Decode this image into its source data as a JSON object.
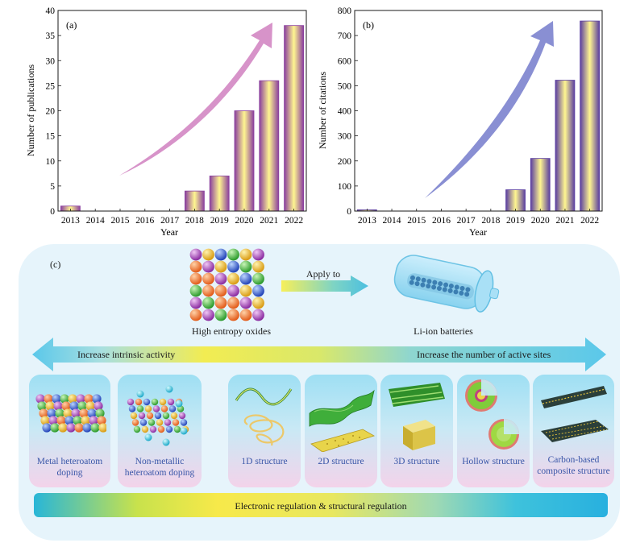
{
  "colors": {
    "bar_a_edge": "#8a3f9e",
    "bar_a_center": "#fff690",
    "bar_b_edge": "#5a3ea0",
    "bar_b_center": "#fff690",
    "arrow_a": "#d48ac4",
    "arrow_b": "#7f86cf",
    "panel_bg": "#e6f4fb",
    "double_arrow": "#5bc8ea",
    "bottom_bar_start": "#28b6d8",
    "bottom_bar_mid": "#f7e94a"
  },
  "chart_data": [
    {
      "type": "bar",
      "panel_label": "(a)",
      "categories": [
        "2013",
        "2014",
        "2015",
        "2016",
        "2017",
        "2018",
        "2019",
        "2020",
        "2021",
        "2022"
      ],
      "values": [
        1,
        0,
        0,
        0,
        0,
        4,
        7,
        20,
        26,
        37
      ],
      "xlabel": "Year",
      "ylabel": "Number of publications",
      "ylim": [
        0,
        40
      ],
      "yticks": [
        0,
        5,
        10,
        15,
        20,
        25,
        30,
        35,
        40
      ],
      "grid": false
    },
    {
      "type": "bar",
      "panel_label": "(b)",
      "categories": [
        "2013",
        "2014",
        "2015",
        "2016",
        "2017",
        "2018",
        "2019",
        "2020",
        "2021",
        "2022"
      ],
      "values": [
        5,
        0,
        0,
        0,
        0,
        0,
        85,
        210,
        522,
        758
      ],
      "xlabel": "Year",
      "ylabel": "Number of citations",
      "ylim": [
        0,
        800
      ],
      "yticks": [
        0,
        100,
        200,
        300,
        400,
        500,
        600,
        700,
        800
      ],
      "grid": false
    }
  ],
  "diagram": {
    "panel_label": "(c)",
    "left_caption": "High entropy oxides",
    "arrow_caption": "Apply to",
    "right_caption": "Li-ion batteries",
    "arrow_left_text": "Increase intrinsic activity",
    "arrow_right_text": "Increase the number of active sites",
    "cards": [
      {
        "name": "metal-doping",
        "label": "Metal heteroatom doping"
      },
      {
        "name": "nonmetal-doping",
        "label": "Non-metallic heteroatom doping"
      },
      {
        "name": "1d",
        "label": "1D structure"
      },
      {
        "name": "2d",
        "label": "2D structure"
      },
      {
        "name": "3d",
        "label": "3D structure"
      },
      {
        "name": "hollow",
        "label": "Hollow structure"
      },
      {
        "name": "carbon",
        "label": "Carbon-based composite structure"
      }
    ],
    "bottom_bar_text": "Electronic regulation & structural regulation"
  }
}
